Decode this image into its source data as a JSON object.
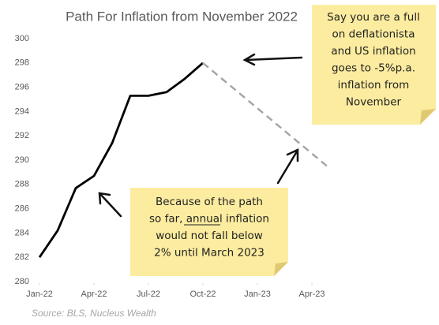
{
  "chart_data": {
    "type": "line",
    "title": "Path For Inflation from November 2022",
    "series": [
      {
        "color": "#000000",
        "style": "solid",
        "x": [
          "2022-01",
          "2022-02",
          "2022-03",
          "2022-04",
          "2022-05",
          "2022-06",
          "2022-07",
          "2022-08",
          "2022-09",
          "2022-10"
        ],
        "values": [
          282.0,
          284.2,
          287.7,
          288.7,
          291.4,
          295.3,
          295.3,
          295.6,
          296.7,
          298.0
        ]
      },
      {
        "color": "#a6a6a6",
        "style": "dashed",
        "x": [
          "2022-10",
          "2023-05"
        ],
        "values": [
          298.0,
          289.3
        ]
      }
    ],
    "xlim": [
      "2022-01",
      "2023-05"
    ],
    "xticks": [
      {
        "value": "2022-01",
        "label": "Jan-22"
      },
      {
        "value": "2022-04",
        "label": "Apr-22"
      },
      {
        "value": "2022-07",
        "label": "Jul-22"
      },
      {
        "value": "2022-10",
        "label": "Oct-22"
      },
      {
        "value": "2023-01",
        "label": "Jan-23"
      },
      {
        "value": "2023-04",
        "label": "Apr-23"
      }
    ],
    "ylim": [
      280,
      300
    ],
    "yticks": [
      280,
      282,
      284,
      286,
      288,
      290,
      292,
      294,
      296,
      298,
      300
    ],
    "annotations": [
      {
        "lines": [
          "Say you are a full",
          "on deflationista",
          "and US inflation",
          "goes to -5%p.a.",
          "inflation from",
          "November"
        ]
      },
      {
        "lines": [
          "Because of the path",
          "so far, annual inflation",
          "would not fall below",
          "2% until March 2023"
        ]
      }
    ],
    "source": "Source: BLS, Nucleus Wealth"
  }
}
